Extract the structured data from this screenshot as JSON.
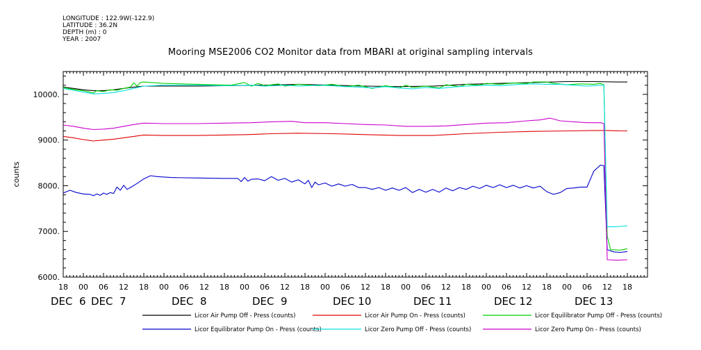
{
  "meta": {
    "longitude": "LONGITUDE : 122.9W(-122.9)",
    "latitude": "LATITUDE : 36.2N",
    "depth": "DEPTH (m) : 0",
    "year": "YEAR : 2007"
  },
  "chart_data": {
    "type": "line",
    "title": "Mooring MSE2006 CO2 Monitor data from MBARI at original sampling intervals",
    "ylabel": "counts",
    "xlabel": "",
    "ylim": [
      6000,
      10500
    ],
    "xlim": [
      0,
      174
    ],
    "x_unit": "hours since DEC 6 18:00",
    "y_ticks": [
      {
        "value": 6000,
        "label": "6000."
      },
      {
        "value": 7000,
        "label": "7000."
      },
      {
        "value": 8000,
        "label": "8000."
      },
      {
        "value": 9000,
        "label": "9000."
      },
      {
        "value": 10000,
        "label": "10000."
      }
    ],
    "x_hour_ticks": [
      {
        "x": 0,
        "label": "18"
      },
      {
        "x": 6,
        "label": "00"
      },
      {
        "x": 12,
        "label": "06"
      },
      {
        "x": 18,
        "label": "12"
      },
      {
        "x": 24,
        "label": "18"
      },
      {
        "x": 30,
        "label": "00"
      },
      {
        "x": 36,
        "label": "06"
      },
      {
        "x": 42,
        "label": "12"
      },
      {
        "x": 48,
        "label": "18"
      },
      {
        "x": 54,
        "label": "00"
      },
      {
        "x": 60,
        "label": "06"
      },
      {
        "x": 66,
        "label": "12"
      },
      {
        "x": 72,
        "label": "18"
      },
      {
        "x": 78,
        "label": "00"
      },
      {
        "x": 84,
        "label": "06"
      },
      {
        "x": 90,
        "label": "12"
      },
      {
        "x": 96,
        "label": "18"
      },
      {
        "x": 102,
        "label": "00"
      },
      {
        "x": 108,
        "label": "06"
      },
      {
        "x": 114,
        "label": "12"
      },
      {
        "x": 120,
        "label": "18"
      },
      {
        "x": 126,
        "label": "00"
      },
      {
        "x": 132,
        "label": "06"
      },
      {
        "x": 138,
        "label": "12"
      },
      {
        "x": 144,
        "label": "18"
      },
      {
        "x": 150,
        "label": "00"
      },
      {
        "x": 156,
        "label": "06"
      },
      {
        "x": 162,
        "label": "12"
      },
      {
        "x": 168,
        "label": "18"
      }
    ],
    "x_day_labels": [
      {
        "x": 0,
        "label": "DEC  6"
      },
      {
        "x": 12,
        "label": "DEC  7"
      },
      {
        "x": 36,
        "label": "DEC  8"
      },
      {
        "x": 60,
        "label": "DEC  9"
      },
      {
        "x": 84,
        "label": "DEC 10"
      },
      {
        "x": 108,
        "label": "DEC 11"
      },
      {
        "x": 132,
        "label": "DEC 12"
      },
      {
        "x": 156,
        "label": "DEC 13"
      }
    ],
    "grid": false,
    "legend_position": "bottom",
    "series": [
      {
        "name": "Licor Air Pump Off - Press (counts)",
        "color": "#000000",
        "points": [
          [
            0,
            10160
          ],
          [
            3,
            10130
          ],
          [
            6,
            10100
          ],
          [
            9,
            10080
          ],
          [
            12,
            10080
          ],
          [
            15,
            10100
          ],
          [
            18,
            10130
          ],
          [
            21,
            10160
          ],
          [
            24,
            10180
          ],
          [
            30,
            10180
          ],
          [
            40,
            10180
          ],
          [
            48,
            10190
          ],
          [
            60,
            10200
          ],
          [
            70,
            10220
          ],
          [
            80,
            10200
          ],
          [
            90,
            10180
          ],
          [
            100,
            10170
          ],
          [
            110,
            10180
          ],
          [
            120,
            10220
          ],
          [
            130,
            10240
          ],
          [
            140,
            10260
          ],
          [
            150,
            10280
          ],
          [
            158,
            10280
          ],
          [
            166,
            10270
          ],
          [
            168,
            10270
          ]
        ]
      },
      {
        "name": "Licor Air Pump On - Press (counts)",
        "color": "#e00000",
        "points": [
          [
            0,
            9080
          ],
          [
            3,
            9050
          ],
          [
            6,
            9010
          ],
          [
            9,
            8980
          ],
          [
            12,
            9000
          ],
          [
            15,
            9020
          ],
          [
            18,
            9050
          ],
          [
            21,
            9080
          ],
          [
            24,
            9110
          ],
          [
            30,
            9100
          ],
          [
            40,
            9100
          ],
          [
            48,
            9110
          ],
          [
            55,
            9120
          ],
          [
            62,
            9140
          ],
          [
            70,
            9150
          ],
          [
            80,
            9140
          ],
          [
            90,
            9120
          ],
          [
            100,
            9100
          ],
          [
            110,
            9100
          ],
          [
            120,
            9140
          ],
          [
            130,
            9170
          ],
          [
            140,
            9190
          ],
          [
            150,
            9200
          ],
          [
            158,
            9210
          ],
          [
            162,
            9210
          ],
          [
            166,
            9200
          ],
          [
            168,
            9200
          ]
        ]
      },
      {
        "name": "Licor Equilibrator Pump Off - Press (counts)",
        "color": "#00d000",
        "points": [
          [
            0,
            10150
          ],
          [
            3,
            10110
          ],
          [
            6,
            10080
          ],
          [
            9,
            10030
          ],
          [
            10,
            10080
          ],
          [
            12,
            10060
          ],
          [
            14,
            10100
          ],
          [
            16,
            10090
          ],
          [
            18,
            10130
          ],
          [
            20,
            10160
          ],
          [
            21,
            10250
          ],
          [
            22,
            10180
          ],
          [
            23,
            10260
          ],
          [
            24,
            10270
          ],
          [
            30,
            10240
          ],
          [
            40,
            10220
          ],
          [
            50,
            10200
          ],
          [
            54,
            10260
          ],
          [
            56,
            10180
          ],
          [
            58,
            10240
          ],
          [
            60,
            10190
          ],
          [
            64,
            10230
          ],
          [
            66,
            10180
          ],
          [
            70,
            10220
          ],
          [
            76,
            10190
          ],
          [
            80,
            10220
          ],
          [
            84,
            10170
          ],
          [
            88,
            10200
          ],
          [
            92,
            10130
          ],
          [
            96,
            10190
          ],
          [
            100,
            10140
          ],
          [
            102,
            10200
          ],
          [
            104,
            10150
          ],
          [
            108,
            10180
          ],
          [
            112,
            10140
          ],
          [
            114,
            10210
          ],
          [
            118,
            10170
          ],
          [
            120,
            10220
          ],
          [
            124,
            10200
          ],
          [
            126,
            10240
          ],
          [
            130,
            10220
          ],
          [
            134,
            10250
          ],
          [
            138,
            10240
          ],
          [
            140,
            10270
          ],
          [
            144,
            10270
          ],
          [
            146,
            10240
          ],
          [
            150,
            10210
          ],
          [
            154,
            10230
          ],
          [
            158,
            10220
          ],
          [
            160,
            10240
          ],
          [
            161,
            10210
          ],
          [
            162,
            6900
          ],
          [
            163,
            6600
          ],
          [
            166,
            6590
          ],
          [
            168,
            6620
          ]
        ]
      },
      {
        "name": "Licor Equilibrator Pump On - Press (counts)",
        "color": "#0000cc",
        "points": [
          [
            0,
            7840
          ],
          [
            2,
            7900
          ],
          [
            4,
            7850
          ],
          [
            6,
            7820
          ],
          [
            8,
            7810
          ],
          [
            9,
            7780
          ],
          [
            10,
            7820
          ],
          [
            11,
            7790
          ],
          [
            12,
            7840
          ],
          [
            13,
            7810
          ],
          [
            14,
            7850
          ],
          [
            15,
            7830
          ],
          [
            16,
            7970
          ],
          [
            17,
            7900
          ],
          [
            18,
            8010
          ],
          [
            19,
            7920
          ],
          [
            20,
            7960
          ],
          [
            22,
            8050
          ],
          [
            24,
            8150
          ],
          [
            26,
            8220
          ],
          [
            28,
            8200
          ],
          [
            32,
            8180
          ],
          [
            40,
            8170
          ],
          [
            48,
            8160
          ],
          [
            52,
            8160
          ],
          [
            53,
            8090
          ],
          [
            54,
            8180
          ],
          [
            55,
            8100
          ],
          [
            56,
            8140
          ],
          [
            58,
            8150
          ],
          [
            60,
            8110
          ],
          [
            62,
            8200
          ],
          [
            64,
            8120
          ],
          [
            66,
            8160
          ],
          [
            68,
            8080
          ],
          [
            70,
            8130
          ],
          [
            72,
            8040
          ],
          [
            73,
            8120
          ],
          [
            74,
            7960
          ],
          [
            75,
            8080
          ],
          [
            76,
            8020
          ],
          [
            78,
            8060
          ],
          [
            80,
            7990
          ],
          [
            82,
            8040
          ],
          [
            84,
            7990
          ],
          [
            86,
            8030
          ],
          [
            88,
            7960
          ],
          [
            90,
            7960
          ],
          [
            92,
            7920
          ],
          [
            94,
            7960
          ],
          [
            96,
            7900
          ],
          [
            98,
            7950
          ],
          [
            100,
            7900
          ],
          [
            102,
            7960
          ],
          [
            104,
            7850
          ],
          [
            106,
            7920
          ],
          [
            108,
            7860
          ],
          [
            110,
            7920
          ],
          [
            112,
            7860
          ],
          [
            114,
            7950
          ],
          [
            116,
            7890
          ],
          [
            118,
            7960
          ],
          [
            120,
            7920
          ],
          [
            122,
            7990
          ],
          [
            124,
            7940
          ],
          [
            126,
            8010
          ],
          [
            128,
            7960
          ],
          [
            130,
            8020
          ],
          [
            132,
            7960
          ],
          [
            134,
            8010
          ],
          [
            136,
            7950
          ],
          [
            138,
            8000
          ],
          [
            140,
            7950
          ],
          [
            142,
            7990
          ],
          [
            144,
            7870
          ],
          [
            146,
            7810
          ],
          [
            148,
            7850
          ],
          [
            150,
            7940
          ],
          [
            152,
            7950
          ],
          [
            154,
            7970
          ],
          [
            156,
            7970
          ],
          [
            158,
            8320
          ],
          [
            160,
            8450
          ],
          [
            161,
            8440
          ],
          [
            162,
            6600
          ],
          [
            164,
            6550
          ],
          [
            166,
            6540
          ],
          [
            168,
            6560
          ]
        ]
      },
      {
        "name": "Licor Zero Pump Off - Press (counts)",
        "color": "#00e0e0",
        "points": [
          [
            0,
            10130
          ],
          [
            3,
            10090
          ],
          [
            6,
            10050
          ],
          [
            9,
            10010
          ],
          [
            12,
            10020
          ],
          [
            15,
            10040
          ],
          [
            18,
            10080
          ],
          [
            21,
            10130
          ],
          [
            24,
            10180
          ],
          [
            30,
            10200
          ],
          [
            40,
            10200
          ],
          [
            48,
            10190
          ],
          [
            56,
            10200
          ],
          [
            60,
            10180
          ],
          [
            66,
            10200
          ],
          [
            70,
            10180
          ],
          [
            76,
            10200
          ],
          [
            80,
            10190
          ],
          [
            84,
            10170
          ],
          [
            88,
            10160
          ],
          [
            92,
            10140
          ],
          [
            96,
            10170
          ],
          [
            100,
            10140
          ],
          [
            104,
            10120
          ],
          [
            108,
            10150
          ],
          [
            112,
            10130
          ],
          [
            116,
            10160
          ],
          [
            120,
            10180
          ],
          [
            126,
            10200
          ],
          [
            130,
            10190
          ],
          [
            136,
            10220
          ],
          [
            140,
            10230
          ],
          [
            144,
            10220
          ],
          [
            148,
            10220
          ],
          [
            152,
            10200
          ],
          [
            156,
            10180
          ],
          [
            160,
            10200
          ],
          [
            161,
            10200
          ],
          [
            162,
            7100
          ],
          [
            164,
            7100
          ],
          [
            168,
            7120
          ]
        ]
      },
      {
        "name": "Licor Zero Pump On - Press (counts)",
        "color": "#cc00cc",
        "points": [
          [
            0,
            9330
          ],
          [
            3,
            9300
          ],
          [
            6,
            9260
          ],
          [
            9,
            9230
          ],
          [
            12,
            9240
          ],
          [
            15,
            9260
          ],
          [
            18,
            9300
          ],
          [
            21,
            9340
          ],
          [
            24,
            9370
          ],
          [
            30,
            9360
          ],
          [
            40,
            9360
          ],
          [
            48,
            9370
          ],
          [
            56,
            9380
          ],
          [
            62,
            9400
          ],
          [
            68,
            9410
          ],
          [
            72,
            9380
          ],
          [
            78,
            9380
          ],
          [
            84,
            9360
          ],
          [
            90,
            9340
          ],
          [
            96,
            9330
          ],
          [
            102,
            9300
          ],
          [
            108,
            9300
          ],
          [
            114,
            9310
          ],
          [
            120,
            9340
          ],
          [
            126,
            9370
          ],
          [
            132,
            9380
          ],
          [
            138,
            9420
          ],
          [
            142,
            9440
          ],
          [
            145,
            9480
          ],
          [
            148,
            9420
          ],
          [
            152,
            9400
          ],
          [
            156,
            9380
          ],
          [
            160,
            9380
          ],
          [
            161,
            9360
          ],
          [
            162,
            6380
          ],
          [
            165,
            6370
          ],
          [
            168,
            6380
          ]
        ]
      }
    ]
  }
}
